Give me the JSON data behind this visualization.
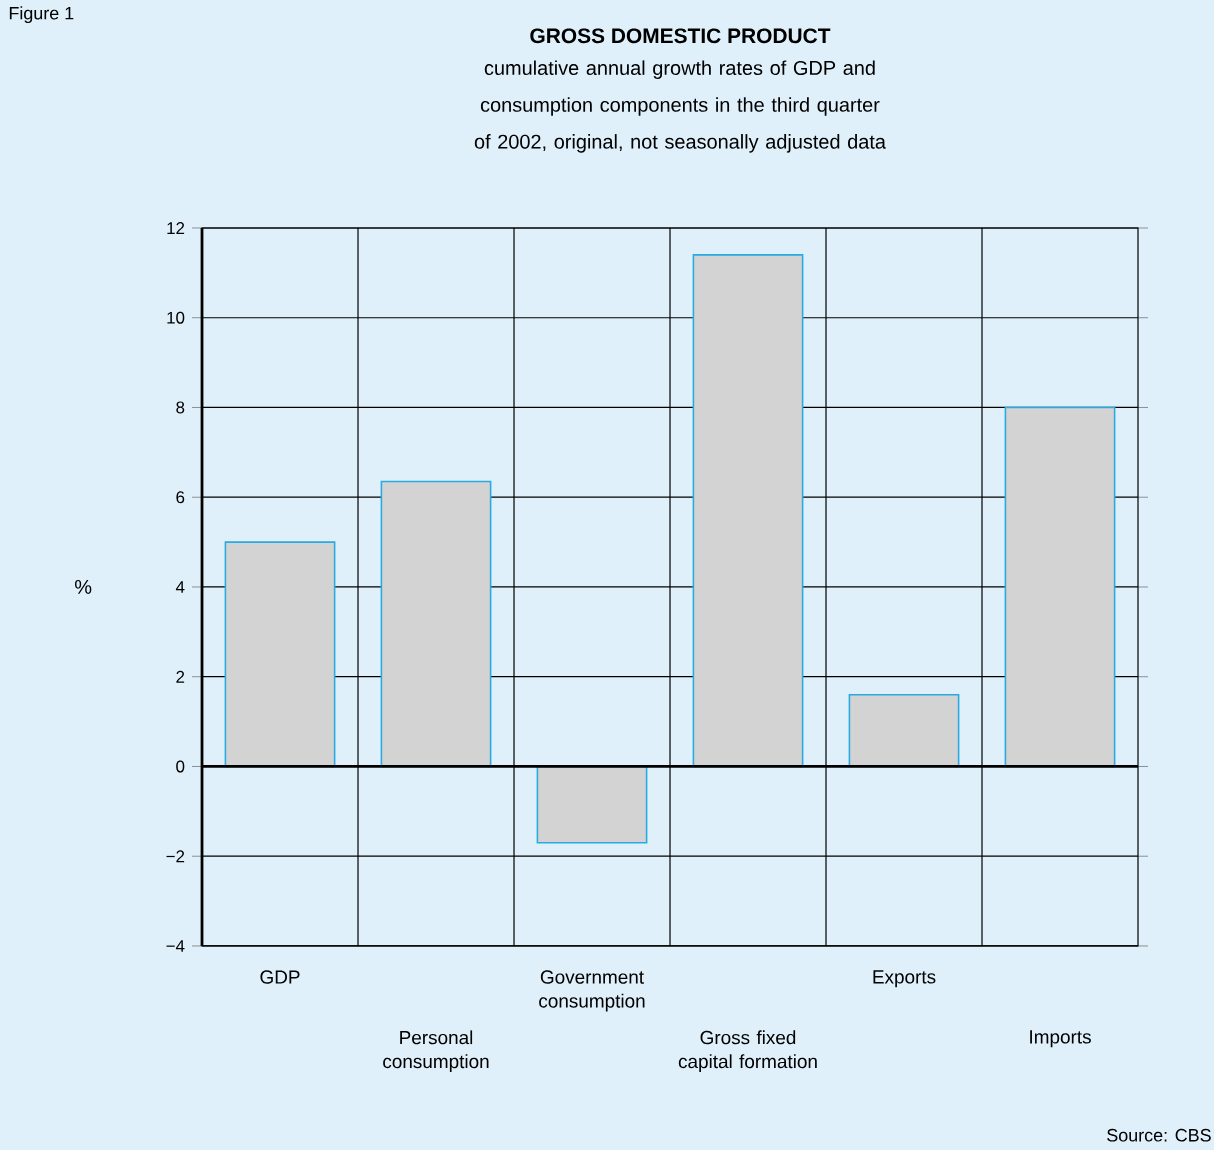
{
  "chart_data": {
    "type": "bar",
    "title": "GROSS DOMESTIC PRODUCT",
    "subtitle": "cumulative annual growth rates of GDP and consumption components in the third quarter of 2002, original, not seasonally adjusted data",
    "ylabel": "%",
    "categories": [
      "GDP",
      "Personal consumption",
      "Government consumption",
      "Gross fixed capital formation",
      "Exports",
      "Imports"
    ],
    "values": [
      5.0,
      6.35,
      -1.7,
      11.4,
      1.6,
      8.0
    ],
    "color": "#d3d3d3",
    "ylim": [
      -4,
      12
    ],
    "yticks": [
      {
        "value": -4,
        "label": "−4"
      },
      {
        "value": -2,
        "label": "−2"
      },
      0,
      2,
      4,
      6,
      8,
      10,
      12
    ],
    "grid": true,
    "annotations": [
      "Figure 1",
      "Source: CBS"
    ]
  }
}
